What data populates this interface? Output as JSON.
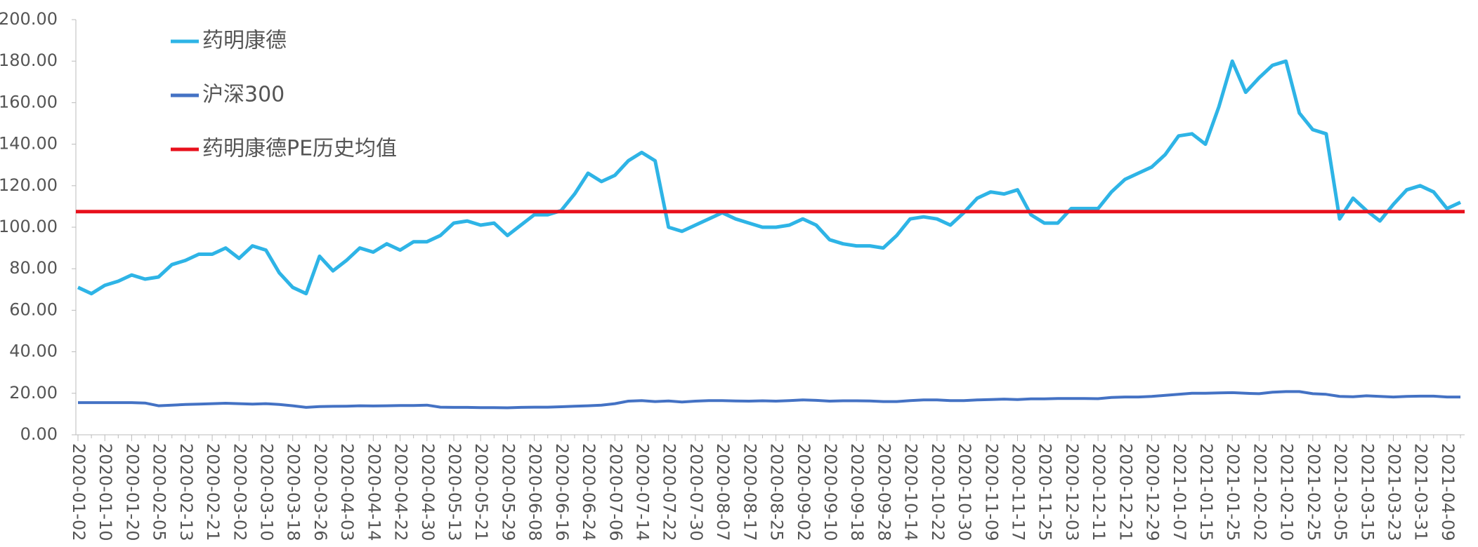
{
  "chart_data": {
    "type": "line",
    "categories": [
      "2020-01-02",
      null,
      "2020-01-10",
      null,
      "2020-01-20",
      null,
      "2020-02-05",
      null,
      "2020-02-13",
      null,
      "2020-02-21",
      null,
      "2020-03-02",
      null,
      "2020-03-10",
      null,
      "2020-03-18",
      null,
      "2020-03-26",
      null,
      "2020-04-03",
      null,
      "2020-04-14",
      null,
      "2020-04-22",
      null,
      "2020-04-30",
      null,
      "2020-05-13",
      null,
      "2020-05-21",
      null,
      "2020-05-29",
      null,
      "2020-06-08",
      null,
      "2020-06-16",
      null,
      "2020-06-24",
      null,
      "2020-07-06",
      null,
      "2020-07-14",
      null,
      "2020-07-22",
      null,
      "2020-07-30",
      null,
      "2020-08-07",
      null,
      "2020-08-17",
      null,
      "2020-08-25",
      null,
      "2020-09-02",
      null,
      "2020-09-10",
      null,
      "2020-09-18",
      null,
      "2020-09-28",
      null,
      "2020-10-14",
      null,
      "2020-10-22",
      null,
      "2020-10-30",
      null,
      "2020-11-09",
      null,
      "2020-11-17",
      null,
      "2020-11-25",
      null,
      "2020-12-03",
      null,
      "2020-12-11",
      null,
      "2020-12-21",
      null,
      "2020-12-29",
      null,
      "2021-01-07",
      null,
      "2021-01-15",
      null,
      "2021-01-25",
      null,
      "2021-02-02",
      null,
      "2021-02-10",
      null,
      "2021-02-25",
      null,
      "2021-03-05",
      null,
      "2021-03-15",
      null,
      "2021-03-23",
      null,
      "2021-03-31",
      null,
      "2021-04-09",
      null
    ],
    "series": [
      {
        "name": "药明康德",
        "color": "#2eb4e6",
        "values": [
          71,
          68,
          72,
          74,
          77,
          75,
          76,
          82,
          84,
          87,
          87,
          90,
          85,
          91,
          89,
          78,
          71,
          68,
          86,
          79,
          84,
          90,
          88,
          92,
          89,
          93,
          93,
          96,
          102,
          103,
          101,
          102,
          96,
          101,
          106,
          106,
          108,
          116,
          126,
          122,
          125,
          132,
          136,
          132,
          100,
          98,
          101,
          104,
          107,
          104,
          102,
          100,
          100,
          101,
          104,
          101,
          94,
          92,
          91,
          91,
          90,
          96,
          104,
          105,
          104,
          101,
          107,
          114,
          117,
          116,
          118,
          106,
          102,
          102,
          109,
          109,
          109,
          117,
          123,
          126,
          129,
          135,
          144,
          145,
          140,
          158,
          180,
          165,
          172,
          178,
          180,
          155,
          147,
          145,
          104,
          114,
          108,
          103,
          111,
          118,
          120,
          117,
          109,
          112
        ]
      },
      {
        "name": "沪深300",
        "color": "#4472c4",
        "values": [
          15.5,
          15.5,
          15.5,
          15.5,
          15.5,
          15.3,
          14,
          14.3,
          14.6,
          14.8,
          15,
          15.2,
          15,
          14.8,
          15,
          14.6,
          14,
          13.2,
          13.6,
          13.7,
          13.8,
          14,
          13.9,
          14,
          14.1,
          14.1,
          14.3,
          13.3,
          13.2,
          13.2,
          13.1,
          13.1,
          13,
          13.2,
          13.3,
          13.3,
          13.5,
          13.8,
          14,
          14.3,
          15,
          16.2,
          16.5,
          16,
          16.3,
          15.8,
          16.2,
          16.5,
          16.5,
          16.3,
          16.2,
          16.4,
          16.2,
          16.5,
          16.8,
          16.6,
          16.2,
          16.4,
          16.4,
          16.3,
          16,
          16,
          16.5,
          16.8,
          16.8,
          16.5,
          16.5,
          16.8,
          17,
          17.2,
          17,
          17.3,
          17.3,
          17.5,
          17.5,
          17.5,
          17.4,
          18,
          18.2,
          18.2,
          18.5,
          19,
          19.5,
          20,
          20,
          20.2,
          20.3,
          20,
          19.8,
          20.5,
          20.8,
          20.8,
          19.8,
          19.5,
          18.5,
          18.3,
          18.8,
          18.5,
          18.2,
          18.5,
          18.6,
          18.6,
          18.2,
          18.2
        ]
      }
    ],
    "reference_lines": [
      {
        "name": "药明康德PE历史均值",
        "color": "#e8101c",
        "value": 107.5
      }
    ],
    "ylim": [
      0,
      200
    ],
    "yticks": [
      {
        "value": 0,
        "label": "0.00"
      },
      {
        "value": 20,
        "label": "20.00"
      },
      {
        "value": 40,
        "label": "40.00"
      },
      {
        "value": 60,
        "label": "60.00"
      },
      {
        "value": 80,
        "label": "80.00"
      },
      {
        "value": 100,
        "label": "100.00"
      },
      {
        "value": 120,
        "label": "120.00"
      },
      {
        "value": 140,
        "label": "140.00"
      },
      {
        "value": 160,
        "label": "160.00"
      },
      {
        "value": 180,
        "label": "180.00"
      },
      {
        "value": 200,
        "label": "200.00"
      }
    ],
    "legend": "top-left"
  }
}
